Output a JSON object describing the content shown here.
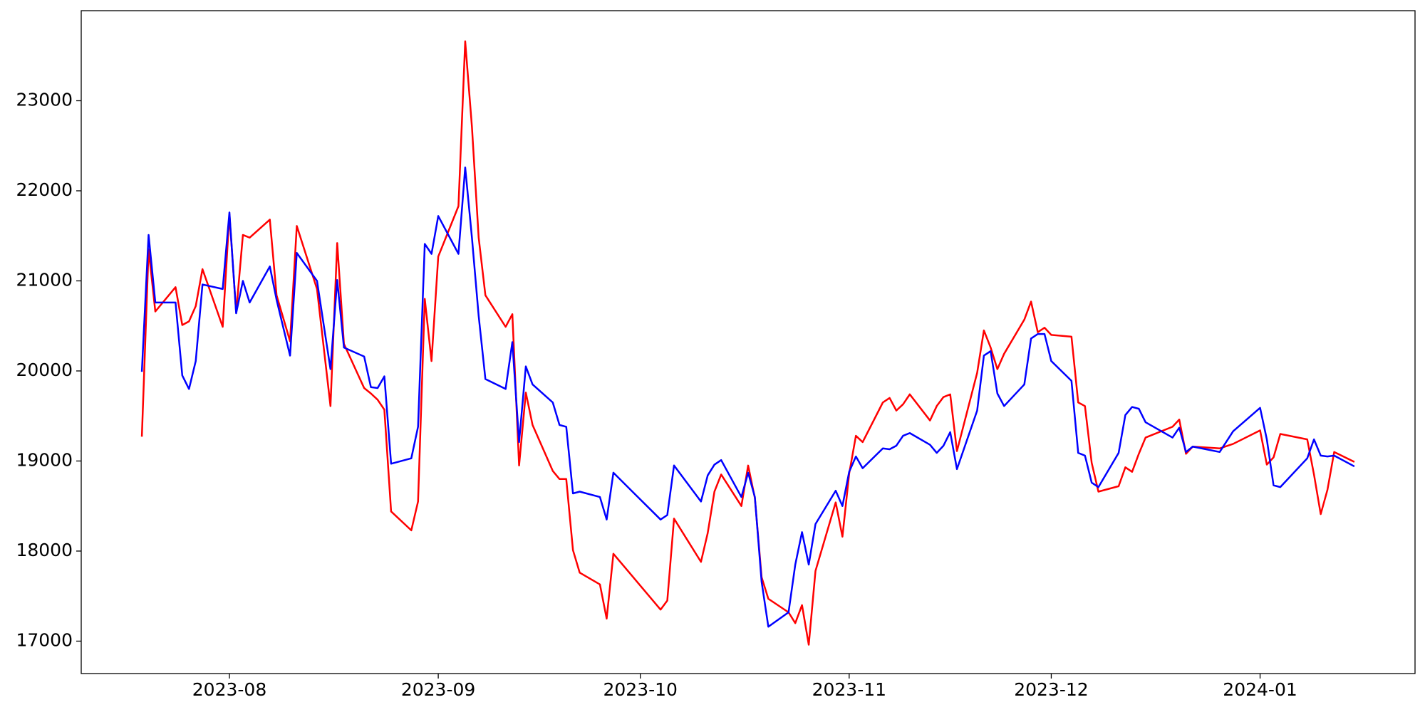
{
  "chart_data": {
    "type": "line",
    "x": [
      "2023-07-19",
      "2023-07-20",
      "2023-07-21",
      "2023-07-24",
      "2023-07-25",
      "2023-07-26",
      "2023-07-27",
      "2023-07-28",
      "2023-07-31",
      "2023-08-01",
      "2023-08-02",
      "2023-08-03",
      "2023-08-04",
      "2023-08-07",
      "2023-08-08",
      "2023-08-10",
      "2023-08-11",
      "2023-08-14",
      "2023-08-16",
      "2023-08-17",
      "2023-08-18",
      "2023-08-21",
      "2023-08-22",
      "2023-08-23",
      "2023-08-24",
      "2023-08-25",
      "2023-08-28",
      "2023-08-29",
      "2023-08-30",
      "2023-08-31",
      "2023-09-01",
      "2023-09-04",
      "2023-09-05",
      "2023-09-06",
      "2023-09-07",
      "2023-09-08",
      "2023-09-11",
      "2023-09-12",
      "2023-09-13",
      "2023-09-14",
      "2023-09-15",
      "2023-09-18",
      "2023-09-19",
      "2023-09-20",
      "2023-09-21",
      "2023-09-22",
      "2023-09-25",
      "2023-09-26",
      "2023-09-27",
      "2023-10-04",
      "2023-10-05",
      "2023-10-06",
      "2023-10-10",
      "2023-10-11",
      "2023-10-12",
      "2023-10-13",
      "2023-10-16",
      "2023-10-17",
      "2023-10-18",
      "2023-10-19",
      "2023-10-20",
      "2023-10-23",
      "2023-10-24",
      "2023-10-25",
      "2023-10-26",
      "2023-10-27",
      "2023-10-30",
      "2023-10-31",
      "2023-11-01",
      "2023-11-02",
      "2023-11-03",
      "2023-11-06",
      "2023-11-07",
      "2023-11-08",
      "2023-11-09",
      "2023-11-10",
      "2023-11-13",
      "2023-11-14",
      "2023-11-15",
      "2023-11-16",
      "2023-11-17",
      "2023-11-20",
      "2023-11-21",
      "2023-11-22",
      "2023-11-23",
      "2023-11-24",
      "2023-11-27",
      "2023-11-28",
      "2023-11-29",
      "2023-11-30",
      "2023-12-01",
      "2023-12-04",
      "2023-12-05",
      "2023-12-06",
      "2023-12-07",
      "2023-12-08",
      "2023-12-11",
      "2023-12-12",
      "2023-12-13",
      "2023-12-14",
      "2023-12-15",
      "2023-12-19",
      "2023-12-20",
      "2023-12-21",
      "2023-12-22",
      "2023-12-26",
      "2023-12-28",
      "2024-01-01",
      "2024-01-02",
      "2024-01-03",
      "2024-01-04",
      "2024-01-08",
      "2024-01-09",
      "2024-01-10",
      "2024-01-11",
      "2024-01-12",
      "2024-01-15"
    ],
    "series": [
      {
        "color": "red",
        "values": [
          19270,
          21350,
          20660,
          20930,
          20510,
          20550,
          20720,
          21130,
          20490,
          21740,
          20650,
          21510,
          21480,
          21680,
          20840,
          20330,
          21610,
          20910,
          19610,
          21420,
          20300,
          19810,
          19750,
          19680,
          19570,
          18440,
          18230,
          18550,
          20800,
          20110,
          21270,
          21830,
          23660,
          22710,
          21480,
          20840,
          20490,
          20630,
          18950,
          19760,
          19400,
          18890,
          18800,
          18800,
          18010,
          17760,
          17630,
          17250,
          17970,
          17350,
          17450,
          18360,
          17880,
          18200,
          18660,
          18850,
          18500,
          18950,
          18590,
          17710,
          17470,
          17320,
          17200,
          17400,
          16960,
          17780,
          18540,
          18160,
          18860,
          19280,
          19210,
          19650,
          19700,
          19560,
          19630,
          19740,
          19450,
          19610,
          19710,
          19740,
          19110,
          19980,
          20450,
          20260,
          20020,
          20190,
          20570,
          20770,
          20430,
          20480,
          20400,
          20380,
          19650,
          19610,
          18980,
          18660,
          18720,
          18930,
          18880,
          19080,
          19260,
          19380,
          19460,
          19080,
          19160,
          19140,
          19190,
          19340,
          18960,
          19040,
          19300,
          19240,
          18850,
          18410,
          18680,
          19100,
          18990
        ]
      },
      {
        "color": "blue",
        "values": [
          19990,
          21510,
          20760,
          20760,
          19950,
          19800,
          20110,
          20960,
          20910,
          21760,
          20640,
          21000,
          20760,
          21160,
          20790,
          20170,
          21310,
          21000,
          20020,
          21010,
          20260,
          20160,
          19820,
          19810,
          19940,
          18970,
          19030,
          19380,
          21410,
          21300,
          21720,
          21300,
          22260,
          21480,
          20610,
          19910,
          19800,
          20320,
          19210,
          20050,
          19850,
          19650,
          19400,
          19380,
          18640,
          18660,
          18600,
          18350,
          18870,
          18350,
          18400,
          18950,
          18550,
          18840,
          18960,
          19010,
          18600,
          18870,
          18600,
          17660,
          17160,
          17320,
          17850,
          18210,
          17850,
          18300,
          18670,
          18500,
          18880,
          19050,
          18920,
          19140,
          19130,
          19170,
          19280,
          19310,
          19180,
          19090,
          19170,
          19320,
          18910,
          19560,
          20170,
          20220,
          19750,
          19610,
          19850,
          20360,
          20410,
          20410,
          20110,
          19890,
          19090,
          19060,
          18760,
          18710,
          19090,
          19510,
          19600,
          19580,
          19430,
          19260,
          19370,
          19100,
          19160,
          19100,
          19330,
          19590,
          19240,
          18730,
          18710,
          19030,
          19240,
          19060,
          19050,
          19060,
          18940
        ]
      }
    ],
    "xlim": [
      "2023-07-10",
      "2024-01-24"
    ],
    "xticks": [
      {
        "value": "2023-08-01",
        "label": "2023-08"
      },
      {
        "value": "2023-09-01",
        "label": "2023-09"
      },
      {
        "value": "2023-10-01",
        "label": "2023-10"
      },
      {
        "value": "2023-11-01",
        "label": "2023-11"
      },
      {
        "value": "2023-12-01",
        "label": "2023-12"
      },
      {
        "value": "2024-01-01",
        "label": "2024-01"
      }
    ],
    "ylim": [
      16640,
      24000
    ],
    "yticks": [
      17000,
      18000,
      19000,
      20000,
      21000,
      22000,
      23000
    ],
    "grid": false
  }
}
